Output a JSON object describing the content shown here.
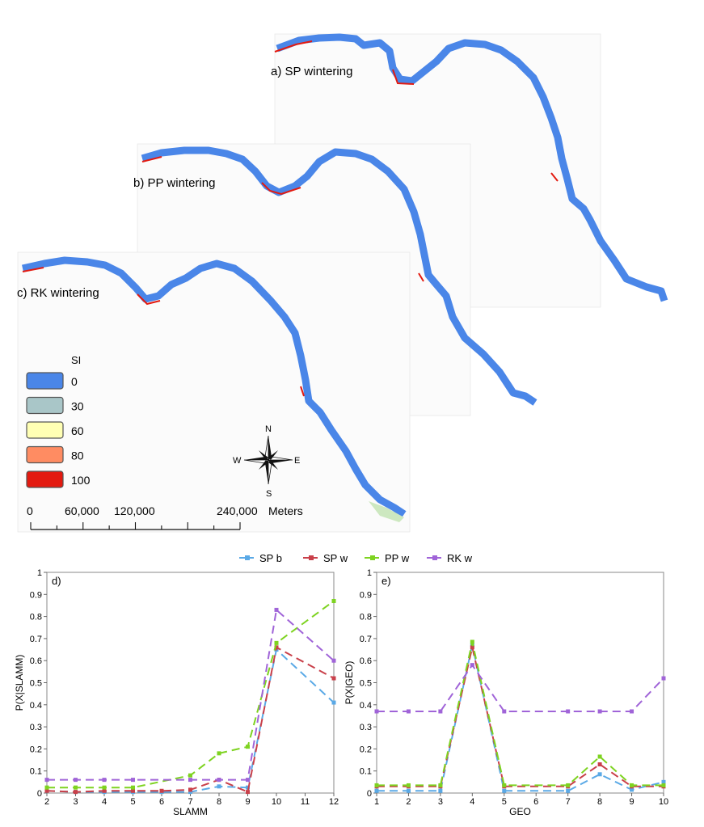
{
  "maps": {
    "panels": [
      {
        "id": "a",
        "label": "a) SP wintering"
      },
      {
        "id": "b",
        "label": "b) PP wintering"
      },
      {
        "id": "c",
        "label": "c) RK wintering"
      }
    ],
    "legend": {
      "title": "SI",
      "items": [
        {
          "label": "0",
          "color": "#4a86e8"
        },
        {
          "label": "30",
          "color": "#a9c6c8"
        },
        {
          "label": "60",
          "color": "#ffffb4"
        },
        {
          "label": "80",
          "color": "#ff8c62"
        },
        {
          "label": "100",
          "color": "#e31a10"
        }
      ]
    },
    "compass": {
      "n": "N",
      "s": "S",
      "e": "E",
      "w": "W"
    },
    "scale": {
      "ticks": [
        "0",
        "60,000",
        "120,000",
        "240,000"
      ],
      "unit": "Meters"
    }
  },
  "chart_data": [
    {
      "type": "line",
      "panel_label": "d)",
      "xlabel": "SLAMM",
      "ylabel": "P(X|SLAMM)",
      "x": [
        2,
        3,
        4,
        5,
        6,
        7,
        8,
        9,
        10,
        11,
        12
      ],
      "xlim": [
        2,
        12
      ],
      "ylim": [
        0,
        1
      ],
      "yticks": [
        "0",
        "0.1",
        "0.2",
        "0.3",
        "0.4",
        "0.5",
        "0.6",
        "0.7",
        "0.8",
        "0.9",
        "1"
      ],
      "series": [
        {
          "name": "SP b",
          "color": "#5aa9e6",
          "values": [
            0.01,
            0.005,
            0.005,
            0.005,
            0.005,
            0.005,
            0.03,
            0.025,
            0.65,
            null,
            0.41
          ]
        },
        {
          "name": "SP w",
          "color": "#c9404a",
          "values": [
            0.01,
            0.005,
            0.01,
            0.01,
            0.01,
            0.015,
            0.06,
            0.005,
            0.66,
            null,
            0.52
          ]
        },
        {
          "name": "PP w",
          "color": "#7ed321",
          "values": [
            0.025,
            0.025,
            0.025,
            0.025,
            null,
            0.08,
            0.18,
            0.21,
            0.68,
            null,
            0.87
          ]
        },
        {
          "name": "RK w",
          "color": "#a064d8",
          "values": [
            0.06,
            0.06,
            0.06,
            0.06,
            null,
            0.06,
            0.06,
            0.06,
            0.83,
            null,
            0.6
          ]
        }
      ]
    },
    {
      "type": "line",
      "panel_label": "e)",
      "xlabel": "GEO",
      "ylabel": "P(X|GEO)",
      "x": [
        1,
        2,
        3,
        4,
        5,
        6,
        7,
        8,
        9,
        10
      ],
      "xlim": [
        1,
        10
      ],
      "ylim": [
        0,
        1
      ],
      "yticks": [
        "0",
        "0.1",
        "0.2",
        "0.3",
        "0.4",
        "0.5",
        "0.6",
        "0.7",
        "0.8",
        "0.9",
        "1"
      ],
      "series": [
        {
          "name": "SP b",
          "color": "#5aa9e6",
          "values": [
            0.01,
            0.01,
            0.01,
            0.67,
            0.01,
            null,
            0.01,
            0.085,
            0.015,
            0.05
          ]
        },
        {
          "name": "SP w",
          "color": "#c9404a",
          "values": [
            0.03,
            0.03,
            0.03,
            0.66,
            0.03,
            null,
            0.03,
            0.13,
            0.03,
            0.03
          ]
        },
        {
          "name": "PP w",
          "color": "#7ed321",
          "values": [
            0.035,
            0.035,
            0.035,
            0.685,
            0.035,
            null,
            0.035,
            0.165,
            0.035,
            0.035
          ]
        },
        {
          "name": "RK w",
          "color": "#a064d8",
          "values": [
            0.37,
            0.37,
            0.37,
            0.58,
            0.37,
            null,
            0.37,
            0.37,
            0.37,
            0.52
          ]
        }
      ]
    }
  ]
}
